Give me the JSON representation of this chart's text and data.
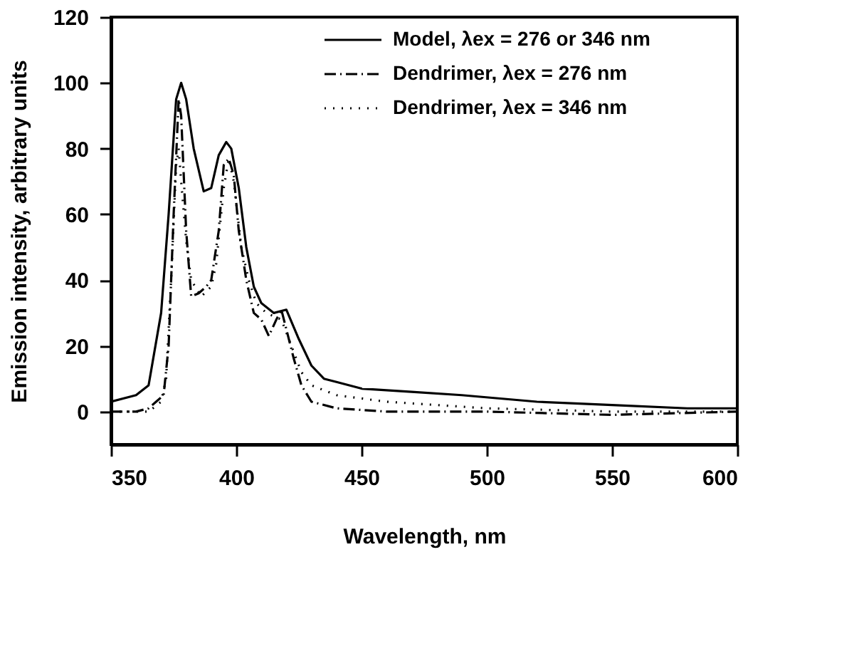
{
  "chart_data": {
    "type": "line",
    "xlabel": "Wavelength, nm",
    "ylabel": "Emission intensity, arbitrary units",
    "xlim": [
      350,
      600
    ],
    "xticks": [
      350,
      400,
      450,
      500,
      550,
      600
    ],
    "ylim": [
      -10,
      120
    ],
    "yticks": [
      0,
      20,
      40,
      60,
      80,
      100,
      120
    ],
    "grid": false,
    "legend": "top right",
    "marker": "none",
    "series": [
      {
        "name": "Model, λex = 276 or 346 nm",
        "color": "#000000",
        "line_style": "solid",
        "x": [
          350,
          360,
          365,
          370,
          373,
          376,
          378,
          380,
          383,
          387,
          390,
          393,
          396,
          398,
          401,
          404,
          407,
          410,
          415,
          420,
          425,
          430,
          435,
          440,
          450,
          470,
          490,
          520,
          550,
          580,
          600
        ],
        "values": [
          3,
          5,
          8,
          30,
          60,
          95,
          100,
          95,
          80,
          67,
          68,
          78,
          82,
          80,
          68,
          50,
          38,
          33,
          30,
          31,
          22,
          14,
          10,
          9,
          7,
          6,
          5,
          3,
          2,
          1,
          1
        ]
      },
      {
        "name": "Dendrimer, λex = 276 nm",
        "color": "#000000",
        "line_style": "dashdot",
        "x": [
          350,
          360,
          365,
          368,
          371,
          373,
          375,
          377,
          378,
          380,
          382,
          385,
          388,
          390,
          393,
          395,
          397,
          399,
          401,
          404,
          407,
          410,
          413,
          416,
          418,
          420,
          423,
          426,
          430,
          440,
          460,
          500,
          550,
          600
        ],
        "values": [
          0,
          0,
          1,
          3,
          5,
          20,
          60,
          95,
          90,
          55,
          35,
          36,
          38,
          40,
          55,
          75,
          77,
          72,
          55,
          40,
          30,
          28,
          23,
          28,
          31,
          25,
          16,
          8,
          3,
          1,
          0,
          0,
          -1,
          0
        ]
      },
      {
        "name": "Dendrimer, λex = 346 nm",
        "color": "#000000",
        "line_style": "dotted",
        "x": [
          350,
          365,
          370,
          372,
          374,
          376,
          377,
          378,
          380,
          382,
          386,
          390,
          392,
          395,
          397,
          399,
          402,
          405,
          408,
          412,
          418,
          422,
          426,
          430,
          440,
          460,
          480,
          500,
          550,
          600
        ],
        "values": [
          0,
          0,
          3,
          10,
          40,
          75,
          80,
          70,
          52,
          40,
          35,
          38,
          45,
          68,
          77,
          70,
          50,
          40,
          33,
          30,
          28,
          20,
          12,
          8,
          5,
          3,
          2,
          1,
          0,
          0
        ]
      }
    ]
  }
}
